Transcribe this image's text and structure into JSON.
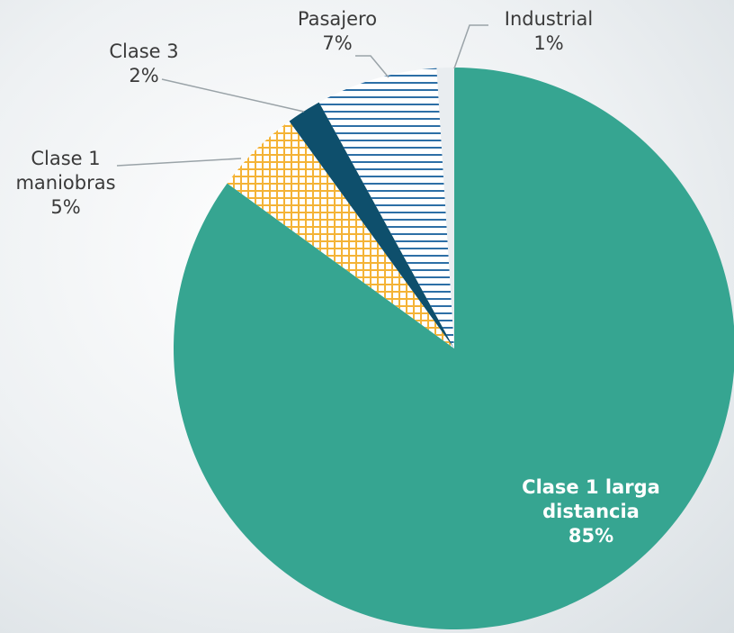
{
  "chart_data": {
    "type": "pie",
    "categories": [
      "Clase 1 larga distancia",
      "Clase 1 maniobras",
      "Clase 3",
      "Pasajero",
      "Industrial"
    ],
    "values": [
      85,
      5,
      2,
      7,
      1
    ],
    "value_labels": [
      "85%",
      "5%",
      "2%",
      "7%",
      "1%"
    ],
    "colors": [
      "#36a591",
      "#f4b336",
      "#0e4f6c",
      "#2d6fa6",
      "#e9edf0"
    ],
    "patterns": [
      null,
      "crosshatch",
      null,
      "horizontal",
      null
    ]
  }
}
